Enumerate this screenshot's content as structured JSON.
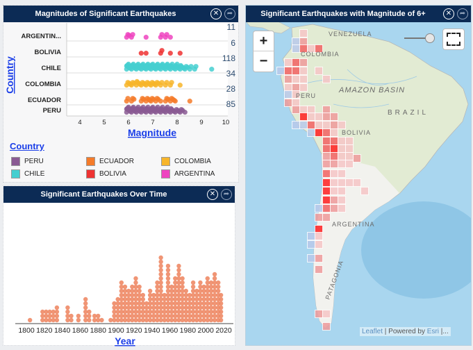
{
  "panels": {
    "magnitudes": {
      "title": "Magnitudes of Significant Earthquakes"
    },
    "over_time": {
      "title": "Significant Earthquakes Over Time"
    },
    "map": {
      "title": "Significant Earthquakes with Magnitude of 6+"
    }
  },
  "legend": {
    "title": "Country",
    "items": [
      {
        "label": "PERU",
        "color": "#8a5a93"
      },
      {
        "label": "ECUADOR",
        "color": "#f47b2a"
      },
      {
        "label": "COLOMBIA",
        "color": "#f7b52a"
      },
      {
        "label": "CHILE",
        "color": "#45cfd0"
      },
      {
        "label": "BOLIVIA",
        "color": "#ee3333"
      },
      {
        "label": "ARGENTINA",
        "color": "#ee44c0"
      }
    ]
  },
  "map": {
    "labels": [
      "VENEZUELA",
      "COLOMBIA",
      "AMAZON BASIN",
      "PERU",
      "BRAZIL",
      "BOLIVIA",
      "ARGENTINA",
      "PATAGONIA"
    ],
    "zoom_in": "+",
    "zoom_out": "−",
    "attribution": {
      "leaflet": "Leaflet",
      "sep": " | Powered by ",
      "esri": "Esri",
      "more": " |..."
    }
  },
  "chart_data": [
    {
      "type": "scatter",
      "title": "Magnitudes of Significant Earthquakes",
      "xlabel": "Magnitude",
      "ylabel": "Country",
      "xlim": [
        3.5,
        10.3
      ],
      "xticks": [
        "4",
        "5",
        "6",
        "7",
        "8",
        "9",
        "10"
      ],
      "categories": [
        "ARGENTIN...",
        "BOLIVIA",
        "CHILE",
        "COLOMBIA",
        "ECUADOR",
        "PERU"
      ],
      "counts": [
        "11",
        "6",
        "118",
        "34",
        "28",
        "85"
      ],
      "series": [
        {
          "name": "ARGENTINA",
          "bins": [
            [
              6.0,
              3
            ],
            [
              6.2,
              2
            ],
            [
              6.8,
              1
            ],
            [
              7.4,
              2
            ],
            [
              7.6,
              2
            ],
            [
              7.8,
              1
            ]
          ]
        },
        {
          "name": "BOLIVIA",
          "bins": [
            [
              6.6,
              1
            ],
            [
              6.8,
              1
            ],
            [
              7.4,
              2
            ],
            [
              7.8,
              1
            ],
            [
              8.2,
              1
            ]
          ]
        },
        {
          "name": "CHILE",
          "bins": [
            [
              6.0,
              10
            ],
            [
              6.2,
              9
            ],
            [
              6.4,
              10
            ],
            [
              6.6,
              11
            ],
            [
              6.8,
              10
            ],
            [
              7.0,
              12
            ],
            [
              7.2,
              10
            ],
            [
              7.4,
              9
            ],
            [
              7.6,
              9
            ],
            [
              7.8,
              8
            ],
            [
              8.0,
              7
            ],
            [
              8.2,
              5
            ],
            [
              8.4,
              3
            ],
            [
              8.6,
              2
            ],
            [
              8.8,
              2
            ],
            [
              9.5,
              1
            ]
          ]
        },
        {
          "name": "COLOMBIA",
          "bins": [
            [
              6.0,
              4
            ],
            [
              6.2,
              3
            ],
            [
              6.4,
              5
            ],
            [
              6.6,
              4
            ],
            [
              6.8,
              4
            ],
            [
              7.0,
              4
            ],
            [
              7.2,
              3
            ],
            [
              7.4,
              2
            ],
            [
              7.6,
              2
            ],
            [
              7.8,
              2
            ],
            [
              8.2,
              1
            ]
          ]
        },
        {
          "name": "ECUADOR",
          "bins": [
            [
              6.0,
              2
            ],
            [
              6.2,
              3
            ],
            [
              6.6,
              3
            ],
            [
              6.8,
              4
            ],
            [
              7.0,
              3
            ],
            [
              7.2,
              3
            ],
            [
              7.4,
              1
            ],
            [
              7.6,
              3
            ],
            [
              7.8,
              4
            ],
            [
              8.0,
              1
            ],
            [
              8.6,
              1
            ]
          ]
        },
        {
          "name": "PERU",
          "bins": [
            [
              6.0,
              9
            ],
            [
              6.2,
              9
            ],
            [
              6.4,
              8
            ],
            [
              6.6,
              8
            ],
            [
              6.8,
              8
            ],
            [
              7.0,
              9
            ],
            [
              7.2,
              7
            ],
            [
              7.4,
              7
            ],
            [
              7.6,
              7
            ],
            [
              7.8,
              5
            ],
            [
              8.0,
              4
            ],
            [
              8.2,
              3
            ],
            [
              8.4,
              1
            ]
          ]
        }
      ]
    },
    {
      "type": "scatter",
      "title": "Significant Earthquakes Over Time",
      "xlabel": "Year",
      "xlim": [
        1800,
        2020
      ],
      "xticks": [
        "1800",
        "1820",
        "1840",
        "1860",
        "1880",
        "1900",
        "1920",
        "1940",
        "1960",
        "1980",
        "2000",
        "2020"
      ],
      "color": "#ee8a66",
      "stacks": [
        [
          1804,
          1
        ],
        [
          1818,
          3
        ],
        [
          1822,
          3
        ],
        [
          1826,
          3
        ],
        [
          1830,
          3
        ],
        [
          1834,
          4
        ],
        [
          1846,
          4
        ],
        [
          1850,
          2
        ],
        [
          1858,
          2
        ],
        [
          1866,
          6
        ],
        [
          1870,
          3
        ],
        [
          1876,
          2
        ],
        [
          1880,
          2
        ],
        [
          1884,
          1
        ],
        [
          1894,
          1
        ],
        [
          1898,
          5
        ],
        [
          1902,
          6
        ],
        [
          1906,
          10
        ],
        [
          1910,
          9
        ],
        [
          1914,
          8
        ],
        [
          1918,
          9
        ],
        [
          1922,
          11
        ],
        [
          1926,
          9
        ],
        [
          1930,
          7
        ],
        [
          1934,
          5
        ],
        [
          1938,
          8
        ],
        [
          1942,
          7
        ],
        [
          1946,
          10
        ],
        [
          1950,
          16
        ],
        [
          1954,
          7
        ],
        [
          1958,
          14
        ],
        [
          1962,
          9
        ],
        [
          1966,
          11
        ],
        [
          1970,
          14
        ],
        [
          1974,
          11
        ],
        [
          1978,
          8
        ],
        [
          1982,
          7
        ],
        [
          1986,
          10
        ],
        [
          1990,
          8
        ],
        [
          1994,
          10
        ],
        [
          1998,
          9
        ],
        [
          2002,
          11
        ],
        [
          2006,
          10
        ],
        [
          2010,
          12
        ],
        [
          2014,
          10
        ],
        [
          2017,
          7
        ]
      ]
    }
  ]
}
